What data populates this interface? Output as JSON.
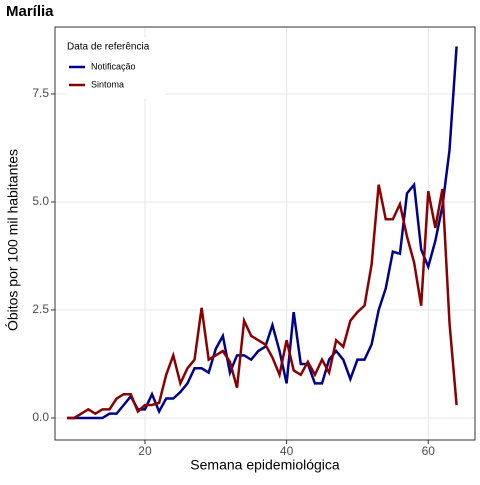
{
  "chart_data": {
    "type": "line",
    "title": "Marília",
    "x_label": "Semana epidemiológica",
    "y_label": "Óbitos por 100 mil habitantes",
    "legend_title": "Data de referência",
    "legend": "top-left",
    "grid": true,
    "x": [
      9,
      10,
      11,
      12,
      13,
      14,
      15,
      16,
      17,
      18,
      19,
      20,
      21,
      22,
      23,
      24,
      25,
      26,
      27,
      28,
      29,
      30,
      31,
      32,
      33,
      34,
      35,
      36,
      37,
      38,
      39,
      40,
      41,
      42,
      43,
      44,
      45,
      46,
      47,
      48,
      49,
      50,
      51,
      52,
      53,
      54,
      55,
      56,
      57,
      58,
      59,
      60,
      61,
      62,
      63,
      64
    ],
    "series": [
      {
        "name": "Notificação",
        "color": "#00008b",
        "values": [
          0,
          0,
          0,
          0,
          0,
          0,
          0.1,
          0.1,
          0.3,
          0.5,
          0.2,
          0.2,
          0.55,
          0.15,
          0.45,
          0.45,
          0.6,
          0.8,
          1.15,
          1.15,
          1.05,
          1.6,
          1.9,
          1.05,
          1.45,
          1.45,
          1.35,
          1.55,
          1.65,
          2.15,
          1.55,
          0.8,
          2.45,
          1.25,
          1.25,
          0.8,
          0.8,
          1.35,
          1.55,
          1.35,
          0.9,
          1.35,
          1.35,
          1.7,
          2.5,
          3.0,
          3.85,
          3.8,
          5.2,
          5.4,
          3.9,
          3.5,
          4.1,
          4.9,
          6.2,
          8.6
        ]
      },
      {
        "name": "Sintoma",
        "color": "#8b0000",
        "values": [
          0,
          0,
          0.1,
          0.2,
          0.1,
          0.2,
          0.2,
          0.45,
          0.55,
          0.55,
          0.15,
          0.3,
          0.3,
          0.35,
          1.0,
          1.45,
          0.8,
          1.15,
          1.35,
          2.55,
          1.35,
          1.45,
          1.55,
          1.3,
          0.7,
          2.25,
          1.9,
          1.8,
          1.7,
          1.4,
          1.0,
          1.8,
          1.1,
          1.0,
          1.3,
          1.0,
          1.35,
          1.05,
          1.8,
          1.65,
          2.25,
          2.45,
          2.6,
          3.55,
          5.4,
          4.6,
          4.6,
          4.95,
          4.2,
          3.6,
          2.6,
          5.25,
          4.4,
          5.3,
          2.2,
          0.3
        ]
      }
    ],
    "xlim": [
      7.3,
      66.6
    ],
    "xticks": [
      20,
      40,
      60
    ],
    "ylim": [
      -0.51,
      9.05
    ],
    "yticks": [
      {
        "value": 0,
        "label": "0.0"
      },
      2.5,
      {
        "value": 5,
        "label": "5.0"
      },
      7.5
    ]
  }
}
